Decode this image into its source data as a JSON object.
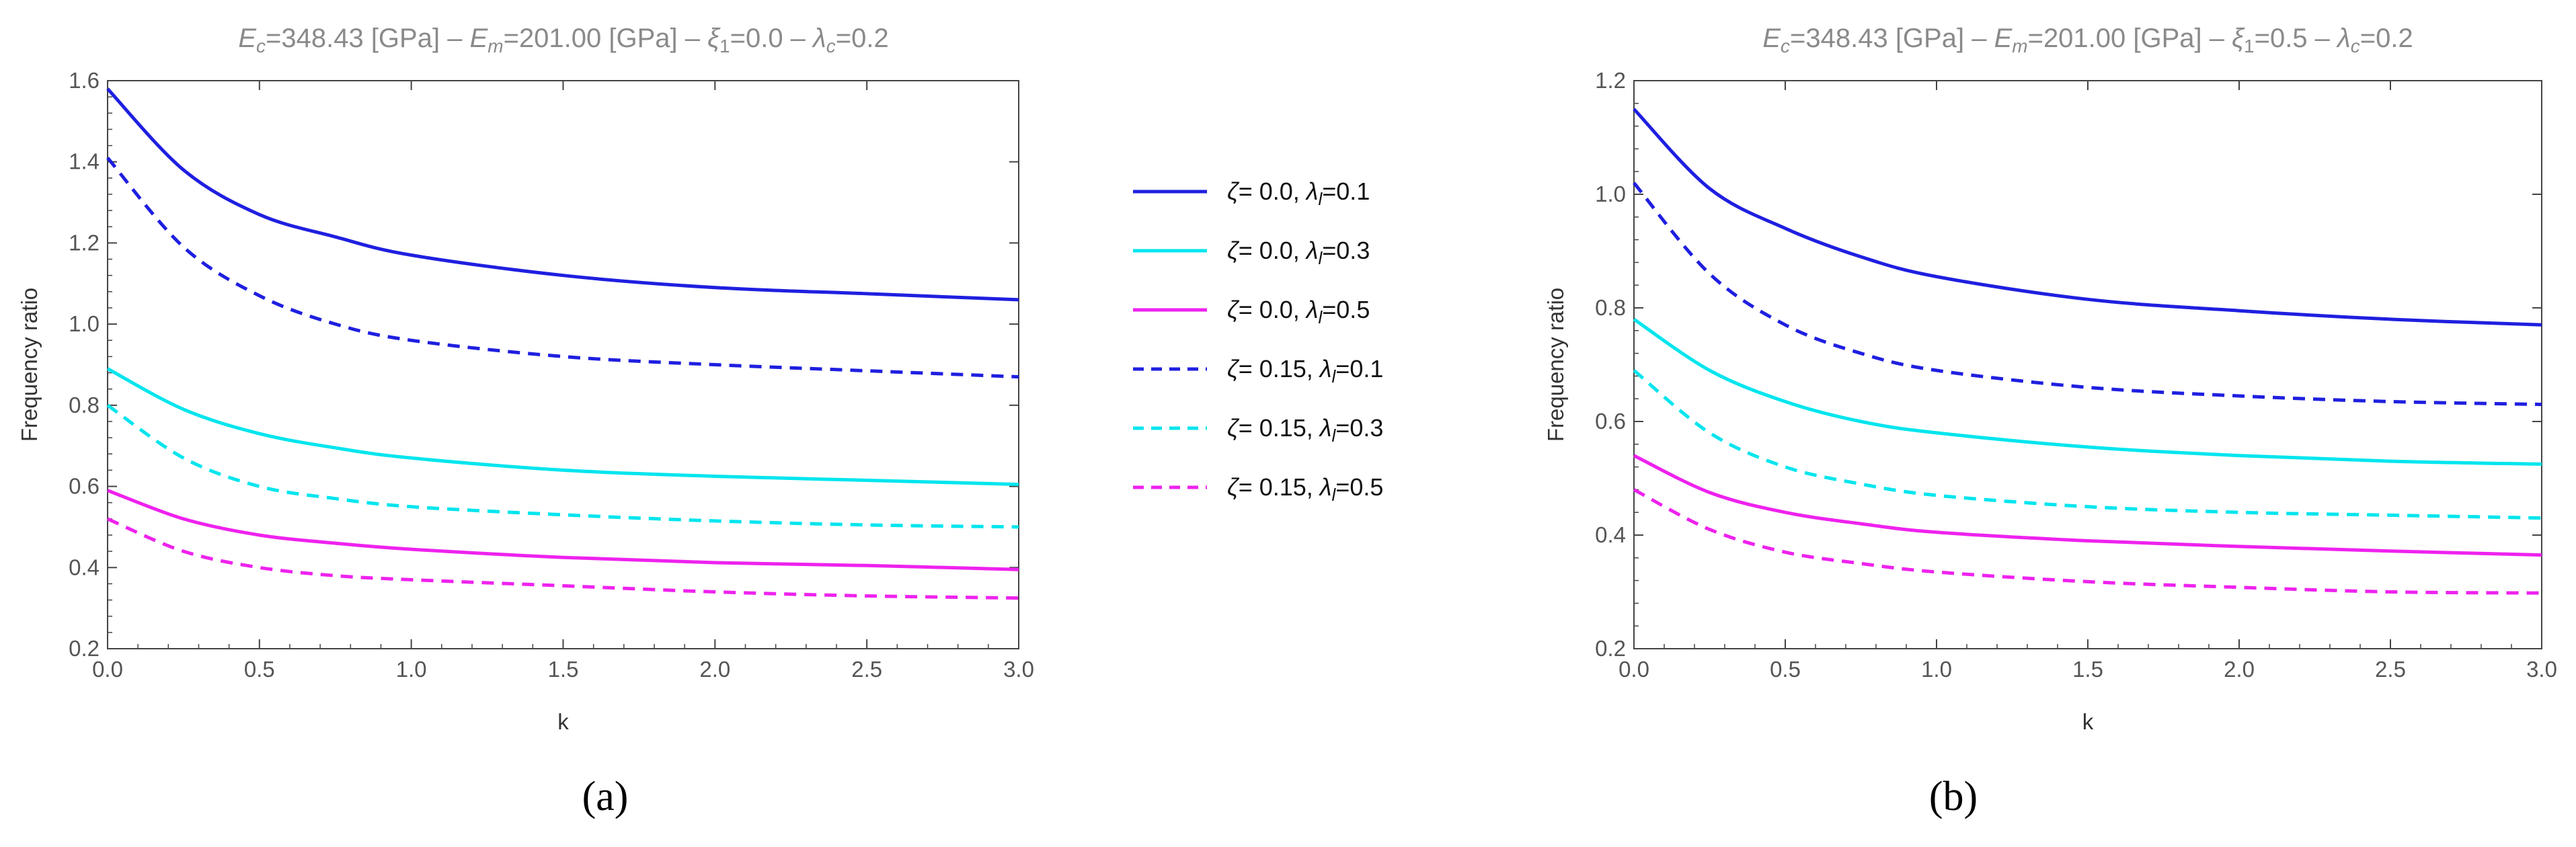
{
  "chart_data": [
    {
      "type": "line",
      "panel_label": "(a)",
      "title": {
        "ec_name": "E",
        "ec_sub": "c",
        "ec_value": "=348.43 [GPa] – ",
        "em_name": "E",
        "em_sub": "m",
        "em_value": "=201.00 [GPa] – ",
        "xi_name": "ξ",
        "xi_sub": "1",
        "xi_value": "=0.0 – ",
        "lc_name": "λ",
        "lc_sub": "c",
        "lc_value": "=0.2"
      },
      "xlabel": "k",
      "ylabel": "Frequency ratio",
      "xlim": [
        0,
        3
      ],
      "ylim": [
        0.2,
        1.6
      ],
      "xticks": [
        "0.0",
        "0.5",
        "1.0",
        "1.5",
        "2.0",
        "2.5",
        "3.0"
      ],
      "yticks": [
        "0.2",
        "0.4",
        "0.6",
        "0.8",
        "1.0",
        "1.2",
        "1.4",
        "1.6"
      ],
      "x": [
        0,
        0.25,
        0.5,
        0.75,
        1.0,
        1.5,
        2.0,
        2.5,
        3.0
      ],
      "series": [
        {
          "name": "ζ= 0.0, λl=0.1",
          "color": "#1f1fe0",
          "dashed": false,
          "values": [
            1.58,
            1.38,
            1.27,
            1.215,
            1.17,
            1.12,
            1.09,
            1.075,
            1.06
          ]
        },
        {
          "name": "ζ= 0.0, λl=0.3",
          "color": "#00e5ee",
          "dashed": false,
          "values": [
            0.89,
            0.79,
            0.73,
            0.695,
            0.67,
            0.64,
            0.625,
            0.615,
            0.605
          ]
        },
        {
          "name": "ζ= 0.0, λl=0.5",
          "color": "#ee22ee",
          "dashed": false,
          "values": [
            0.59,
            0.52,
            0.48,
            0.46,
            0.445,
            0.425,
            0.412,
            0.405,
            0.395
          ]
        },
        {
          "name": "ζ= 0.15, λl=0.1",
          "color": "#1f1fe0",
          "dashed": true,
          "values": [
            1.41,
            1.19,
            1.07,
            1.0,
            0.96,
            0.92,
            0.9,
            0.885,
            0.87
          ]
        },
        {
          "name": "ζ= 0.15, λl=0.3",
          "color": "#00e5ee",
          "dashed": true,
          "values": [
            0.8,
            0.67,
            0.6,
            0.57,
            0.55,
            0.53,
            0.515,
            0.505,
            0.5
          ]
        },
        {
          "name": "ζ= 0.15, λl=0.5",
          "color": "#ee22ee",
          "dashed": true,
          "values": [
            0.52,
            0.44,
            0.4,
            0.38,
            0.37,
            0.355,
            0.34,
            0.33,
            0.325
          ]
        }
      ]
    },
    {
      "type": "line",
      "panel_label": "(b)",
      "title": {
        "ec_name": "E",
        "ec_sub": "c",
        "ec_value": "=348.43 [GPa] – ",
        "em_name": "E",
        "em_sub": "m",
        "em_value": "=201.00 [GPa] – ",
        "xi_name": "ξ",
        "xi_sub": "1",
        "xi_value": "=0.5 – ",
        "lc_name": "λ",
        "lc_sub": "c",
        "lc_value": "=0.2"
      },
      "xlabel": "k",
      "ylabel": "Frequency ratio",
      "xlim": [
        0,
        3
      ],
      "ylim": [
        0.2,
        1.2
      ],
      "xticks": [
        "0.0",
        "0.5",
        "1.0",
        "1.5",
        "2.0",
        "2.5",
        "3.0"
      ],
      "yticks": [
        "0.2",
        "0.4",
        "0.6",
        "0.8",
        "1.0",
        "1.2"
      ],
      "x": [
        0,
        0.25,
        0.5,
        0.75,
        1.0,
        1.5,
        2.0,
        2.5,
        3.0
      ],
      "series": [
        {
          "name": "ζ= 0.0, λl=0.1",
          "color": "#1f1fe0",
          "dashed": false,
          "values": [
            1.15,
            1.01,
            0.94,
            0.89,
            0.855,
            0.815,
            0.795,
            0.78,
            0.77
          ]
        },
        {
          "name": "ζ= 0.0, λl=0.3",
          "color": "#00e5ee",
          "dashed": false,
          "values": [
            0.78,
            0.69,
            0.635,
            0.6,
            0.58,
            0.555,
            0.54,
            0.53,
            0.525
          ]
        },
        {
          "name": "ζ= 0.0, λl=0.5",
          "color": "#ee22ee",
          "dashed": false,
          "values": [
            0.54,
            0.475,
            0.44,
            0.42,
            0.405,
            0.39,
            0.38,
            0.372,
            0.365
          ]
        },
        {
          "name": "ζ= 0.15, λl=0.1",
          "color": "#1f1fe0",
          "dashed": true,
          "values": [
            1.02,
            0.86,
            0.77,
            0.72,
            0.69,
            0.66,
            0.645,
            0.635,
            0.63
          ]
        },
        {
          "name": "ζ= 0.15, λl=0.3",
          "color": "#00e5ee",
          "dashed": true,
          "values": [
            0.69,
            0.58,
            0.52,
            0.49,
            0.47,
            0.45,
            0.44,
            0.435,
            0.43
          ]
        },
        {
          "name": "ζ= 0.15, λl=0.5",
          "color": "#ee22ee",
          "dashed": true,
          "values": [
            0.48,
            0.41,
            0.37,
            0.35,
            0.335,
            0.318,
            0.308,
            0.3,
            0.298
          ]
        }
      ]
    }
  ],
  "legend": {
    "items": [
      {
        "zeta": "ζ",
        "zeta_value": "= 0.0, ",
        "lam": "λ",
        "lam_sub": "l",
        "lam_value": "=0.1",
        "color": "#1f1fe0",
        "dashed": false
      },
      {
        "zeta": "ζ",
        "zeta_value": "= 0.0, ",
        "lam": "λ",
        "lam_sub": "l",
        "lam_value": "=0.3",
        "color": "#00e5ee",
        "dashed": false
      },
      {
        "zeta": "ζ",
        "zeta_value": "= 0.0, ",
        "lam": "λ",
        "lam_sub": "l",
        "lam_value": "=0.5",
        "color": "#ee22ee",
        "dashed": false
      },
      {
        "zeta": "ζ",
        "zeta_value": "= 0.15, ",
        "lam": "λ",
        "lam_sub": "l",
        "lam_value": "=0.1",
        "color": "#1f1fe0",
        "dashed": true
      },
      {
        "zeta": "ζ",
        "zeta_value": "= 0.15, ",
        "lam": "λ",
        "lam_sub": "l",
        "lam_value": "=0.3",
        "color": "#00e5ee",
        "dashed": true
      },
      {
        "zeta": "ζ",
        "zeta_value": "= 0.15, ",
        "lam": "λ",
        "lam_sub": "l",
        "lam_value": "=0.5",
        "color": "#ee22ee",
        "dashed": true
      }
    ]
  }
}
